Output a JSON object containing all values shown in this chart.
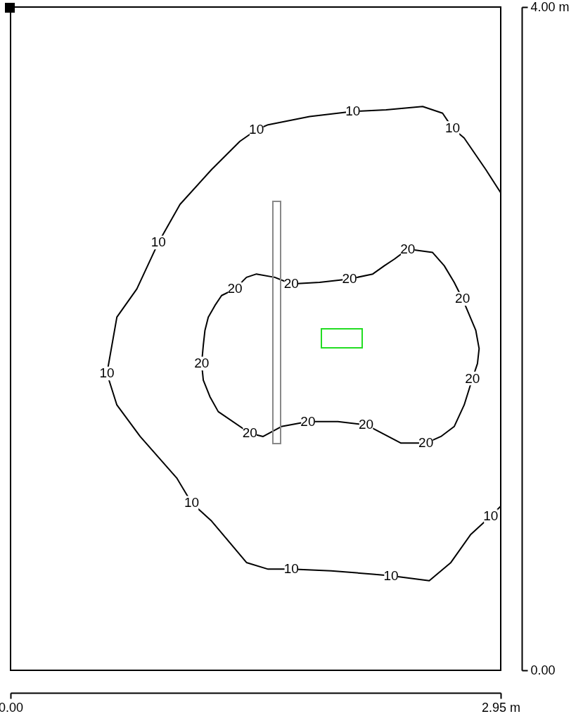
{
  "chart_data": {
    "type": "line",
    "xlim": [
      0,
      2.95
    ],
    "ylim": [
      0,
      4
    ],
    "xticks": [
      {
        "value": 0,
        "label": "0.00"
      },
      {
        "value": 2.95,
        "label": "2.95 m"
      }
    ],
    "yticks": [
      {
        "value": 0,
        "label": "0.00"
      },
      {
        "value": 4,
        "label": "4.00 m"
      }
    ],
    "series": [
      {
        "color": "#000000",
        "x": [
          2.95,
          2.86,
          2.73,
          2.66,
          2.6,
          2.48,
          2.26,
          2.06,
          1.8,
          1.55,
          1.48,
          1.38,
          1.21,
          1.02,
          0.89,
          0.76,
          0.64,
          0.58,
          0.64,
          0.78,
          1.0,
          1.09,
          1.21,
          1.42,
          1.55,
          1.69,
          1.93,
          2.18,
          2.29,
          2.52,
          2.65,
          2.77,
          2.89,
          2.95
        ],
        "values": [
          2.88,
          3.02,
          3.21,
          3.27,
          3.36,
          3.4,
          3.38,
          3.37,
          3.34,
          3.29,
          3.26,
          3.19,
          3.02,
          2.81,
          2.58,
          2.3,
          2.13,
          1.79,
          1.6,
          1.41,
          1.16,
          1.01,
          0.9,
          0.65,
          0.61,
          0.61,
          0.6,
          0.58,
          0.57,
          0.54,
          0.65,
          0.82,
          0.93,
          0.99
        ]
      },
      {
        "color": "#000000",
        "x": [
          1.59,
          1.69,
          1.86,
          2.04,
          2.18,
          2.25,
          2.31,
          2.39,
          2.54,
          2.61,
          2.67,
          2.72,
          2.8,
          2.82,
          2.81,
          2.78,
          2.73,
          2.67,
          2.59,
          2.5,
          2.35,
          2.14,
          1.97,
          1.79,
          1.63,
          1.52,
          1.44,
          1.25,
          1.2,
          1.16,
          1.15,
          1.16,
          1.17,
          1.19,
          1.23,
          1.27,
          1.35,
          1.42,
          1.48,
          1.59,
          1.69
        ],
        "values": [
          2.37,
          2.33,
          2.34,
          2.36,
          2.39,
          2.44,
          2.48,
          2.54,
          2.52,
          2.44,
          2.34,
          2.24,
          2.05,
          1.94,
          1.85,
          1.76,
          1.6,
          1.47,
          1.41,
          1.37,
          1.37,
          1.48,
          1.5,
          1.5,
          1.47,
          1.41,
          1.43,
          1.56,
          1.65,
          1.75,
          1.85,
          1.96,
          2.05,
          2.13,
          2.2,
          2.26,
          2.3,
          2.37,
          2.39,
          2.37,
          2.33
        ]
      }
    ],
    "annotations": [
      {
        "text": "10",
        "x": 1.48,
        "y": 3.26
      },
      {
        "text": "10",
        "x": 2.06,
        "y": 3.37
      },
      {
        "text": "10",
        "x": 2.66,
        "y": 3.27
      },
      {
        "text": "10",
        "x": 0.89,
        "y": 2.58
      },
      {
        "text": "10",
        "x": 0.58,
        "y": 1.79
      },
      {
        "text": "10",
        "x": 1.09,
        "y": 1.01
      },
      {
        "text": "10",
        "x": 1.69,
        "y": 0.61
      },
      {
        "text": "10",
        "x": 2.29,
        "y": 0.57
      },
      {
        "text": "10",
        "x": 2.89,
        "y": 0.93
      },
      {
        "text": "20",
        "x": 2.39,
        "y": 2.54
      },
      {
        "text": "20",
        "x": 1.35,
        "y": 2.3
      },
      {
        "text": "20",
        "x": 1.69,
        "y": 2.33
      },
      {
        "text": "20",
        "x": 2.04,
        "y": 2.36
      },
      {
        "text": "20",
        "x": 2.72,
        "y": 2.24
      },
      {
        "text": "20",
        "x": 1.15,
        "y": 1.85
      },
      {
        "text": "20",
        "x": 2.78,
        "y": 1.76
      },
      {
        "text": "20",
        "x": 1.44,
        "y": 1.43
      },
      {
        "text": "20",
        "x": 1.79,
        "y": 1.5
      },
      {
        "text": "20",
        "x": 2.14,
        "y": 1.48
      },
      {
        "text": "20",
        "x": 2.5,
        "y": 1.37
      }
    ]
  }
}
